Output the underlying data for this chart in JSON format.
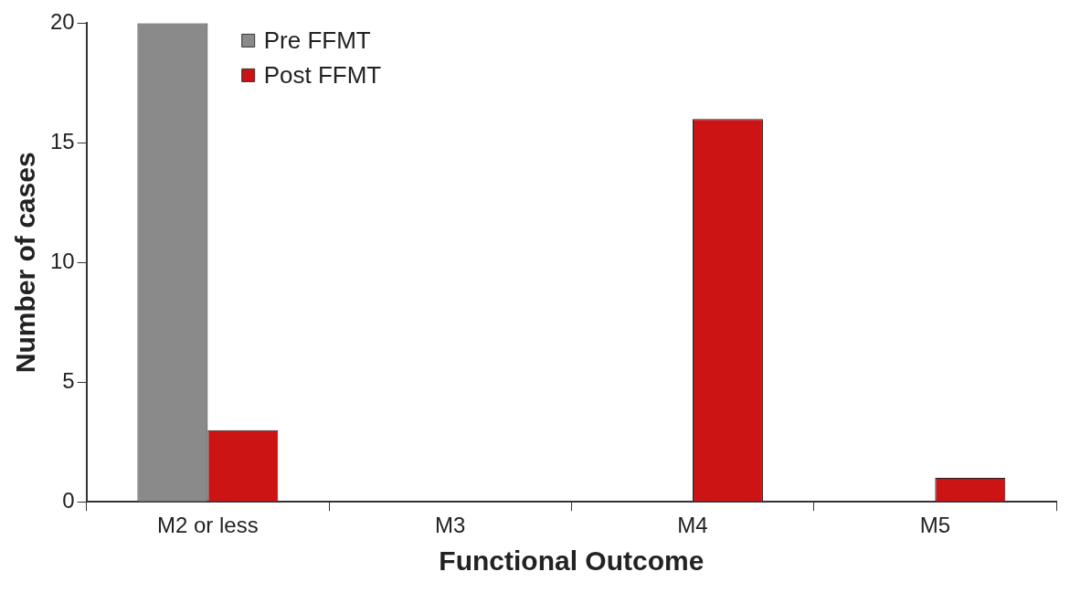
{
  "chart_data": {
    "type": "bar",
    "xlabel": "Functional Outcome",
    "ylabel": "Number of cases",
    "categories": [
      "M2 or less",
      "M3",
      "M4",
      "M5"
    ],
    "series": [
      {
        "name": "Pre FFMT",
        "color": "#8a8a8a",
        "values": [
          20,
          0,
          0,
          0
        ]
      },
      {
        "name": "Post FFMT",
        "color": "#cc1414",
        "values": [
          3,
          0,
          16,
          1
        ]
      }
    ],
    "ylim": [
      0,
      20
    ],
    "yticks": [
      0,
      5,
      10,
      15,
      20
    ],
    "grid": false,
    "legend": "top left"
  }
}
